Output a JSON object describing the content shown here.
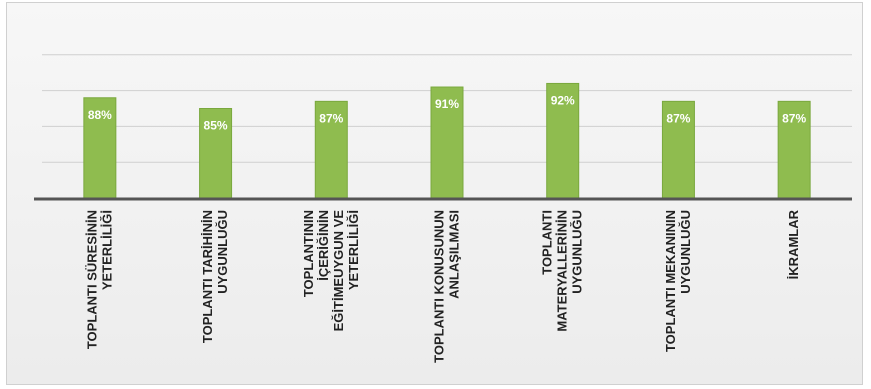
{
  "chart_data": {
    "type": "bar",
    "title": "",
    "xlabel": "",
    "ylabel": "",
    "ylim": [
      60,
      100
    ],
    "grid": true,
    "categories": [
      [
        "TOPLANTI SÜRESİNİN",
        "YETERLİLİĞİ"
      ],
      [
        "TOPLANTI TARİHİNİN",
        "UYGUNLUĞU"
      ],
      [
        "TOPLANTININ",
        "İÇERİĞİNİN",
        "EĞİTİMEUYGUN VE",
        "YETERLİLİĞİ"
      ],
      [
        "TOPLANTI KONUSUNUN",
        "ANLAŞILMASI"
      ],
      [
        "TOPLANTI",
        "MATERYALLERİNİN",
        "UYGUNLUĞU"
      ],
      [
        "TOPLANTI MEKANININ",
        "UYGUNLUĞU"
      ],
      [
        "İKRAMLAR"
      ]
    ],
    "values": [
      88,
      85,
      87,
      91,
      92,
      87,
      87
    ],
    "data_labels": [
      "88%",
      "85%",
      "87%",
      "91%",
      "92%",
      "87%",
      "87%"
    ],
    "bar_color": "#8fbc4f",
    "bar_edge_color": "#7aa83e"
  }
}
